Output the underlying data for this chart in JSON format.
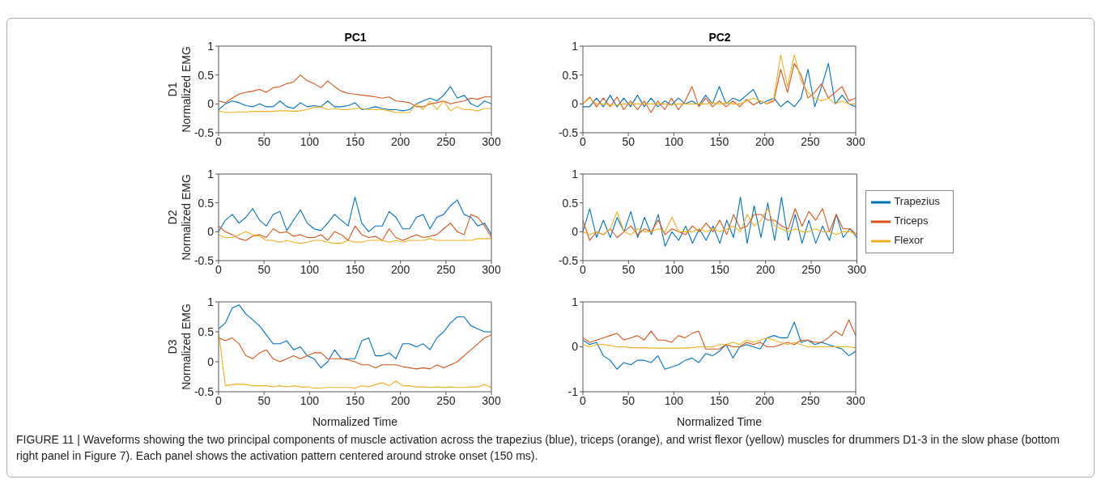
{
  "chart_data": [
    {
      "type": "line",
      "title": "PC1",
      "ylabel": "D1\nNormalized EMG",
      "xlim": [
        0,
        300
      ],
      "xticks": [
        0,
        50,
        100,
        150,
        200,
        250,
        300
      ],
      "ylim": [
        -0.5,
        1
      ],
      "yticks": [
        -0.5,
        0,
        0.5,
        1
      ],
      "marker": "none",
      "x": [
        0,
        7.5,
        15,
        22.5,
        30,
        37.5,
        45,
        52.5,
        60,
        67.5,
        75,
        82.5,
        90,
        97.5,
        105,
        112.5,
        120,
        127.5,
        135,
        142.5,
        150,
        157.5,
        165,
        172.5,
        180,
        187.5,
        195,
        202.5,
        210,
        217.5,
        225,
        232.5,
        240,
        247.5,
        255,
        262.5,
        270,
        277.5,
        285,
        292.5,
        300
      ],
      "series": [
        {
          "color": "#0072bd",
          "values": [
            -0.1,
            0,
            0.05,
            0.02,
            -0.03,
            -0.05,
            0,
            -0.05,
            -0.05,
            0.05,
            -0.05,
            -0.08,
            0.02,
            -0.05,
            -0.03,
            -0.05,
            0.05,
            -0.05,
            -0.05,
            -0.03,
            0.02,
            -0.1,
            -0.08,
            -0.05,
            -0.08,
            -0.1,
            -0.1,
            -0.12,
            -0.1,
            0,
            0.05,
            0.1,
            0.05,
            0.15,
            0.3,
            0.1,
            0.15,
            0,
            -0.05,
            0.05,
            0
          ]
        },
        {
          "color": "#d95319",
          "values": [
            0.05,
            0.02,
            0.1,
            0.17,
            0.2,
            0.22,
            0.25,
            0.2,
            0.28,
            0.3,
            0.35,
            0.38,
            0.5,
            0.4,
            0.35,
            0.28,
            0.4,
            0.3,
            0.22,
            0.18,
            0.17,
            0.15,
            0.14,
            0.12,
            0.1,
            0.12,
            0.05,
            0.04,
            0.02,
            -0.05,
            -0.05,
            0,
            0.02,
            0.05,
            0,
            0.03,
            0.05,
            0.1,
            0.08,
            0.12,
            0.12
          ]
        },
        {
          "color": "#edb120",
          "values": [
            -0.12,
            -0.15,
            -0.15,
            -0.14,
            -0.14,
            -0.13,
            -0.13,
            -0.13,
            -0.13,
            -0.12,
            -0.12,
            -0.13,
            -0.12,
            -0.1,
            -0.06,
            -0.05,
            -0.1,
            -0.08,
            -0.1,
            -0.1,
            -0.08,
            -0.08,
            -0.1,
            -0.1,
            -0.1,
            -0.12,
            -0.15,
            -0.15,
            -0.15,
            0,
            -0.1,
            0.05,
            -0.1,
            0.05,
            -0.12,
            -0.05,
            -0.1,
            -0.1,
            -0.12,
            -0.08,
            -0.08
          ]
        }
      ]
    },
    {
      "type": "line",
      "title": "PC2",
      "xlim": [
        0,
        300
      ],
      "xticks": [
        0,
        50,
        100,
        150,
        200,
        250,
        300
      ],
      "ylim": [
        -0.5,
        1
      ],
      "yticks": [
        -0.5,
        0,
        0.5,
        1
      ],
      "marker": "none",
      "x": [
        0,
        7.5,
        15,
        22.5,
        30,
        37.5,
        45,
        52.5,
        60,
        67.5,
        75,
        82.5,
        90,
        97.5,
        105,
        112.5,
        120,
        127.5,
        135,
        142.5,
        150,
        157.5,
        165,
        172.5,
        180,
        187.5,
        195,
        202.5,
        210,
        217.5,
        225,
        232.5,
        240,
        247.5,
        255,
        262.5,
        270,
        277.5,
        285,
        292.5,
        300
      ],
      "series": [
        {
          "color": "#0072bd",
          "values": [
            -0.05,
            -0.05,
            0.1,
            -0.05,
            0.15,
            -0.05,
            0.1,
            -0.05,
            0.15,
            -0.05,
            0.1,
            -0.05,
            0.05,
            -0.02,
            0.1,
            0,
            0.05,
            -0.02,
            0.15,
            0,
            0.3,
            0,
            0.1,
            0.05,
            0.15,
            0.25,
            0,
            0.05,
            0.1,
            -0.05,
            0.05,
            -0.05,
            0.1,
            0.6,
            -0.05,
            0.3,
            0.7,
            0,
            0.15,
            0,
            -0.05
          ]
        },
        {
          "color": "#d95319",
          "values": [
            0,
            0.12,
            -0.05,
            0.1,
            -0.05,
            0.12,
            -0.1,
            0.05,
            -0.1,
            0.05,
            -0.15,
            0.05,
            -0.1,
            0.1,
            -0.1,
            0.05,
            0.3,
            -0.05,
            0.1,
            -0.05,
            0.05,
            -0.05,
            0.05,
            -0.05,
            0.08,
            -0.02,
            0.05,
            0,
            0.05,
            0.6,
            0.2,
            0.7,
            0.5,
            0.1,
            0.2,
            0.35,
            0.1,
            0.2,
            0.3,
            0.05,
            0.1
          ]
        },
        {
          "color": "#edb120",
          "values": [
            0,
            0.1,
            0,
            0,
            -0.02,
            -0.02,
            0,
            0,
            0,
            0,
            0,
            0,
            0,
            -0.02,
            0,
            0,
            0,
            0,
            0,
            0.02,
            0,
            0.02,
            0,
            0,
            0.05,
            0.1,
            0.05,
            0,
            0.1,
            0.85,
            0.3,
            0.85,
            0.4,
            0.2,
            0.1,
            0.05,
            0.1,
            0,
            0.05,
            0,
            0
          ]
        }
      ]
    },
    {
      "type": "line",
      "ylabel": "D2\nNormalized EMG",
      "xlim": [
        0,
        300
      ],
      "xticks": [
        0,
        50,
        100,
        150,
        200,
        250,
        300
      ],
      "ylim": [
        -0.5,
        1
      ],
      "yticks": [
        -0.5,
        0,
        0.5,
        1
      ],
      "marker": "none",
      "x": [
        0,
        7.5,
        15,
        22.5,
        30,
        37.5,
        45,
        52.5,
        60,
        67.5,
        75,
        82.5,
        90,
        97.5,
        105,
        112.5,
        120,
        127.5,
        135,
        142.5,
        150,
        157.5,
        165,
        172.5,
        180,
        187.5,
        195,
        202.5,
        210,
        217.5,
        225,
        232.5,
        240,
        247.5,
        255,
        262.5,
        270,
        277.5,
        285,
        292.5,
        300
      ],
      "series": [
        {
          "color": "#0072bd",
          "values": [
            0,
            0.2,
            0.3,
            0.15,
            0.25,
            0.4,
            0.2,
            0.1,
            0.3,
            0.35,
            0.02,
            0.2,
            0.38,
            0.15,
            0.05,
            0.02,
            0.15,
            0.3,
            0.2,
            0.1,
            0.6,
            0.15,
            0,
            0.1,
            0.1,
            0.35,
            0.25,
            0.05,
            0.05,
            0.25,
            0.3,
            0.05,
            0.25,
            0.3,
            0.45,
            0.55,
            0.3,
            0.25,
            0.1,
            0.15,
            -0.05
          ]
        },
        {
          "color": "#d95319",
          "values": [
            0.1,
            0,
            -0.05,
            -0.12,
            -0.15,
            -0.08,
            -0.05,
            -0.1,
            0.05,
            -0.02,
            0,
            -0.08,
            -0.05,
            -0.1,
            -0.1,
            -0.05,
            -0.15,
            0,
            -0.05,
            -0.15,
            0.1,
            -0.05,
            -0.1,
            -0.08,
            -0.15,
            0.05,
            -0.1,
            -0.15,
            -0.1,
            -0.05,
            -0.1,
            -0.08,
            -0.05,
            0.05,
            0.15,
            0,
            -0.05,
            0.3,
            0.25,
            0.1,
            -0.1
          ]
        },
        {
          "color": "#edb120",
          "values": [
            -0.05,
            -0.1,
            -0.1,
            -0.05,
            0,
            -0.05,
            -0.08,
            -0.15,
            -0.15,
            -0.18,
            -0.15,
            -0.18,
            -0.2,
            -0.18,
            -0.15,
            -0.15,
            -0.18,
            -0.2,
            -0.2,
            -0.15,
            -0.18,
            -0.18,
            -0.15,
            -0.15,
            -0.15,
            -0.18,
            -0.15,
            -0.18,
            -0.15,
            -0.15,
            -0.15,
            -0.12,
            -0.15,
            -0.15,
            -0.15,
            -0.15,
            -0.15,
            -0.15,
            -0.12,
            -0.12,
            -0.12
          ]
        }
      ]
    },
    {
      "type": "line",
      "xlim": [
        0,
        300
      ],
      "xticks": [
        0,
        50,
        100,
        150,
        200,
        250,
        300
      ],
      "ylim": [
        -0.5,
        1
      ],
      "yticks": [
        -0.5,
        0,
        0.5,
        1
      ],
      "marker": "none",
      "legend": "right",
      "x": [
        0,
        7.5,
        15,
        22.5,
        30,
        37.5,
        45,
        52.5,
        60,
        67.5,
        75,
        82.5,
        90,
        97.5,
        105,
        112.5,
        120,
        127.5,
        135,
        142.5,
        150,
        157.5,
        165,
        172.5,
        180,
        187.5,
        195,
        202.5,
        210,
        217.5,
        225,
        232.5,
        240,
        247.5,
        255,
        262.5,
        270,
        277.5,
        285,
        292.5,
        300
      ],
      "series": [
        {
          "name": "Trapezius",
          "color": "#0072bd",
          "values": [
            0,
            0.4,
            -0.1,
            0.2,
            -0.1,
            0.25,
            0,
            0.35,
            -0.1,
            0.25,
            -0.05,
            0.3,
            -0.25,
            0,
            -0.15,
            0.1,
            -0.2,
            0.05,
            -0.15,
            0.1,
            -0.2,
            0.2,
            -0.1,
            0.6,
            -0.2,
            0.45,
            -0.1,
            0.5,
            -0.15,
            0.6,
            -0.15,
            0.3,
            -0.2,
            0.2,
            -0.2,
            0.1,
            -0.15,
            0.3,
            -0.1,
            0.05,
            -0.1
          ]
        },
        {
          "name": "Triceps",
          "color": "#d95319",
          "values": [
            0.2,
            -0.15,
            0,
            -0.05,
            0.05,
            -0.1,
            0,
            0.1,
            -0.05,
            0.05,
            0,
            0.2,
            -0.05,
            0.05,
            0,
            -0.05,
            0.1,
            0,
            0.15,
            0,
            0.2,
            -0.05,
            0.3,
            0.05,
            0.1,
            0.3,
            0.3,
            0.2,
            0.2,
            0.1,
            0.05,
            0.4,
            0.1,
            0.35,
            0.2,
            0.4,
            0,
            0.3,
            0.05,
            0.05,
            -0.05
          ]
        },
        {
          "name": "Flexor",
          "color": "#edb120",
          "values": [
            0,
            -0.05,
            0,
            -0.05,
            0.05,
            0.35,
            0,
            -0.05,
            0.05,
            0,
            0,
            0.05,
            0,
            0.25,
            0,
            0,
            0,
            0.05,
            0,
            0.05,
            0,
            0.05,
            0.1,
            0,
            0.3,
            0.1,
            0.2,
            0.4,
            0.1,
            0.05,
            0,
            0.05,
            0,
            0,
            0.05,
            0,
            0,
            -0.05,
            0,
            0,
            -0.05
          ]
        }
      ]
    },
    {
      "type": "line",
      "ylabel": "D3\nNormalized EMG",
      "xlabel": "Normalized Time",
      "xlim": [
        0,
        300
      ],
      "xticks": [
        0,
        50,
        100,
        150,
        200,
        250,
        300
      ],
      "ylim": [
        -0.5,
        1
      ],
      "yticks": [
        -0.5,
        0,
        0.5,
        1
      ],
      "marker": "none",
      "x": [
        0,
        7.5,
        15,
        22.5,
        30,
        37.5,
        45,
        52.5,
        60,
        67.5,
        75,
        82.5,
        90,
        97.5,
        105,
        112.5,
        120,
        127.5,
        135,
        142.5,
        150,
        157.5,
        165,
        172.5,
        180,
        187.5,
        195,
        202.5,
        210,
        217.5,
        225,
        232.5,
        240,
        247.5,
        255,
        262.5,
        270,
        277.5,
        285,
        292.5,
        300
      ],
      "series": [
        {
          "color": "#0072bd",
          "values": [
            0.55,
            0.65,
            0.9,
            0.95,
            0.8,
            0.7,
            0.6,
            0.45,
            0.3,
            0.3,
            0.35,
            0.2,
            0.25,
            0.1,
            0.05,
            -0.1,
            0,
            0.2,
            0.05,
            0.05,
            0.05,
            0.35,
            0.4,
            0.1,
            0.1,
            0.15,
            0.05,
            0.3,
            0.3,
            0.25,
            0.3,
            0.2,
            0.4,
            0.5,
            0.65,
            0.75,
            0.75,
            0.6,
            0.55,
            0.5,
            0.5
          ]
        },
        {
          "color": "#d95319",
          "values": [
            0.4,
            0.35,
            0.4,
            0.3,
            0.1,
            0.05,
            0.15,
            0.2,
            0.05,
            0,
            0.05,
            0.1,
            0.05,
            0.1,
            0.15,
            0.15,
            0.05,
            0.05,
            0.05,
            0.03,
            0,
            -0.05,
            -0.05,
            -0.1,
            -0.05,
            -0.05,
            -0.05,
            -0.08,
            -0.1,
            -0.12,
            -0.1,
            -0.12,
            -0.05,
            -0.1,
            -0.05,
            0,
            0.1,
            0.2,
            0.3,
            0.4,
            0.45
          ]
        },
        {
          "color": "#edb120",
          "values": [
            0.5,
            -0.4,
            -0.38,
            -0.37,
            -0.38,
            -0.4,
            -0.4,
            -0.4,
            -0.42,
            -0.4,
            -0.42,
            -0.4,
            -0.42,
            -0.42,
            -0.44,
            -0.44,
            -0.43,
            -0.43,
            -0.43,
            -0.43,
            -0.44,
            -0.4,
            -0.42,
            -0.38,
            -0.35,
            -0.4,
            -0.32,
            -0.4,
            -0.4,
            -0.42,
            -0.42,
            -0.43,
            -0.42,
            -0.43,
            -0.42,
            -0.43,
            -0.43,
            -0.42,
            -0.42,
            -0.38,
            -0.43
          ]
        }
      ]
    },
    {
      "type": "line",
      "xlabel": "Normalized Time",
      "xlim": [
        0,
        300
      ],
      "xticks": [
        0,
        50,
        100,
        150,
        200,
        250,
        300
      ],
      "ylim": [
        -1,
        1
      ],
      "yticks": [
        -1,
        0,
        1
      ],
      "marker": "none",
      "annotations": [
        "FIGURE 11 | Waveforms showing the two principal components of muscle activation across the trapezius (blue), triceps (orange), and wrist flexor (yellow) muscles for drummers D1-3 in the slow phase (bottom right panel in Figure 7). Each panel shows the activation pattern centered around stroke onset (150 ms)."
      ],
      "x": [
        0,
        7.5,
        15,
        22.5,
        30,
        37.5,
        45,
        52.5,
        60,
        67.5,
        75,
        82.5,
        90,
        97.5,
        105,
        112.5,
        120,
        127.5,
        135,
        142.5,
        150,
        157.5,
        165,
        172.5,
        180,
        187.5,
        195,
        202.5,
        210,
        217.5,
        225,
        232.5,
        240,
        247.5,
        255,
        262.5,
        270,
        277.5,
        285,
        292.5,
        300
      ],
      "series": [
        {
          "color": "#0072bd",
          "values": [
            0.15,
            0.05,
            0.1,
            -0.2,
            -0.3,
            -0.5,
            -0.35,
            -0.4,
            -0.3,
            -0.3,
            -0.35,
            -0.2,
            -0.5,
            -0.45,
            -0.4,
            -0.3,
            -0.25,
            -0.35,
            -0.15,
            -0.2,
            -0.1,
            0.05,
            -0.25,
            0,
            0.05,
            0,
            -0.05,
            0.2,
            0.25,
            0.2,
            0.2,
            0.55,
            0.1,
            0.15,
            0.05,
            0.1,
            0.05,
            0,
            -0.05,
            -0.2,
            -0.1
          ]
        },
        {
          "color": "#d95319",
          "values": [
            0.2,
            0.1,
            0.15,
            0.2,
            0.25,
            0.3,
            0.15,
            0.2,
            0.25,
            0.15,
            0.35,
            0.15,
            0.15,
            0.1,
            0.25,
            0.2,
            0.3,
            0.35,
            -0.05,
            -0.05,
            -0.05,
            0.05,
            0,
            0,
            0.1,
            0.05,
            0.1,
            0,
            0,
            0.05,
            0.1,
            0.05,
            0.15,
            0.15,
            0.1,
            0.1,
            0.2,
            0.35,
            0.25,
            0.6,
            0.25
          ]
        },
        {
          "color": "#edb120",
          "values": [
            0.05,
            0,
            0.05,
            0.05,
            0.03,
            0,
            0,
            -0.02,
            -0.02,
            -0.02,
            -0.03,
            -0.03,
            -0.03,
            -0.03,
            -0.03,
            -0.03,
            -0.02,
            0,
            0,
            0,
            0.05,
            0.05,
            0.1,
            0.05,
            0.15,
            0.1,
            0.15,
            0.2,
            0.15,
            0.1,
            0.05,
            0.1,
            0.05,
            0,
            0,
            0,
            0,
            0,
            0,
            0,
            -0.02
          ]
        }
      ]
    }
  ]
}
